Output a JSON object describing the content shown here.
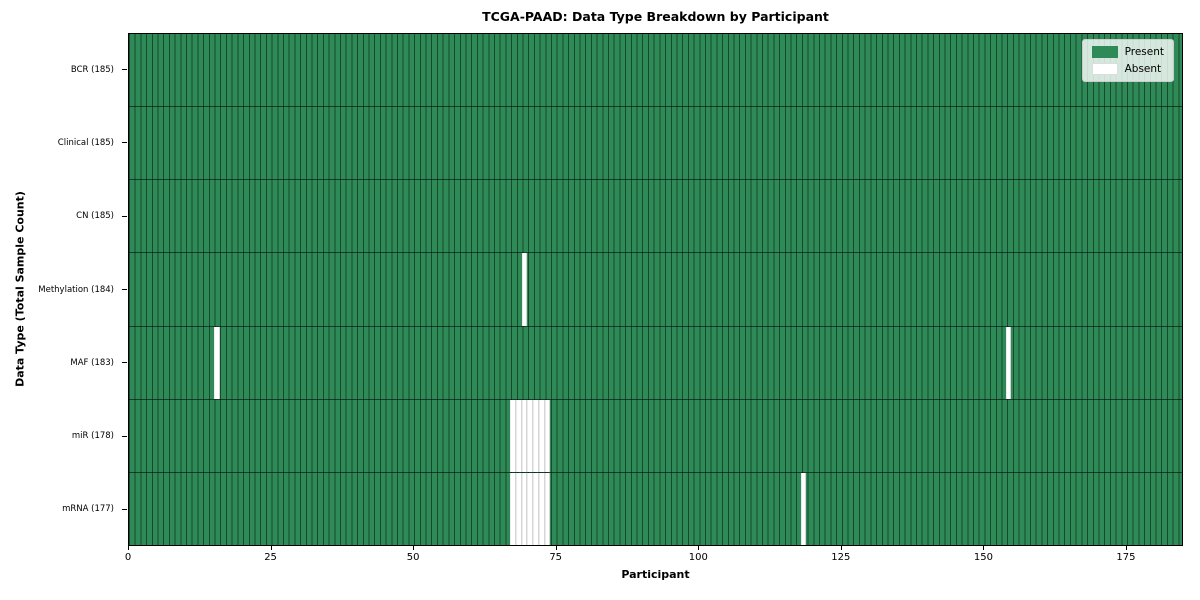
{
  "chart_data": {
    "type": "heatmap",
    "title": "TCGA-PAAD: Data Type Breakdown by Participant",
    "xlabel": "Participant",
    "ylabel": "Data Type (Total Sample Count)",
    "n_participants": 185,
    "xlim": [
      0,
      185
    ],
    "x_ticks": [
      0,
      25,
      50,
      75,
      100,
      125,
      150,
      175
    ],
    "legend_position": "upper right",
    "grid": false,
    "colors": {
      "present": "#2e8b57",
      "absent": "#ffffff"
    },
    "legend": [
      {
        "label": "Present",
        "color": "#2e8b57"
      },
      {
        "label": "Absent",
        "color": "#ffffff"
      }
    ],
    "rows": [
      {
        "name": "BCR",
        "label": "BCR (185)",
        "total_samples": 185,
        "absent_participants": []
      },
      {
        "name": "Clinical",
        "label": "Clinical (185)",
        "total_samples": 185,
        "absent_participants": []
      },
      {
        "name": "CN",
        "label": "CN (185)",
        "total_samples": 185,
        "absent_participants": []
      },
      {
        "name": "Methylation",
        "label": "Methylation (184)",
        "total_samples": 184,
        "absent_participants": [
          69
        ]
      },
      {
        "name": "MAF",
        "label": "MAF (183)",
        "total_samples": 183,
        "absent_participants": [
          15,
          154
        ]
      },
      {
        "name": "miR",
        "label": "miR (178)",
        "total_samples": 178,
        "absent_participants": [
          67,
          68,
          69,
          70,
          71,
          72,
          73
        ]
      },
      {
        "name": "mRNA",
        "label": "mRNA (177)",
        "total_samples": 177,
        "absent_participants": [
          67,
          68,
          69,
          70,
          71,
          72,
          73,
          118
        ]
      }
    ]
  }
}
